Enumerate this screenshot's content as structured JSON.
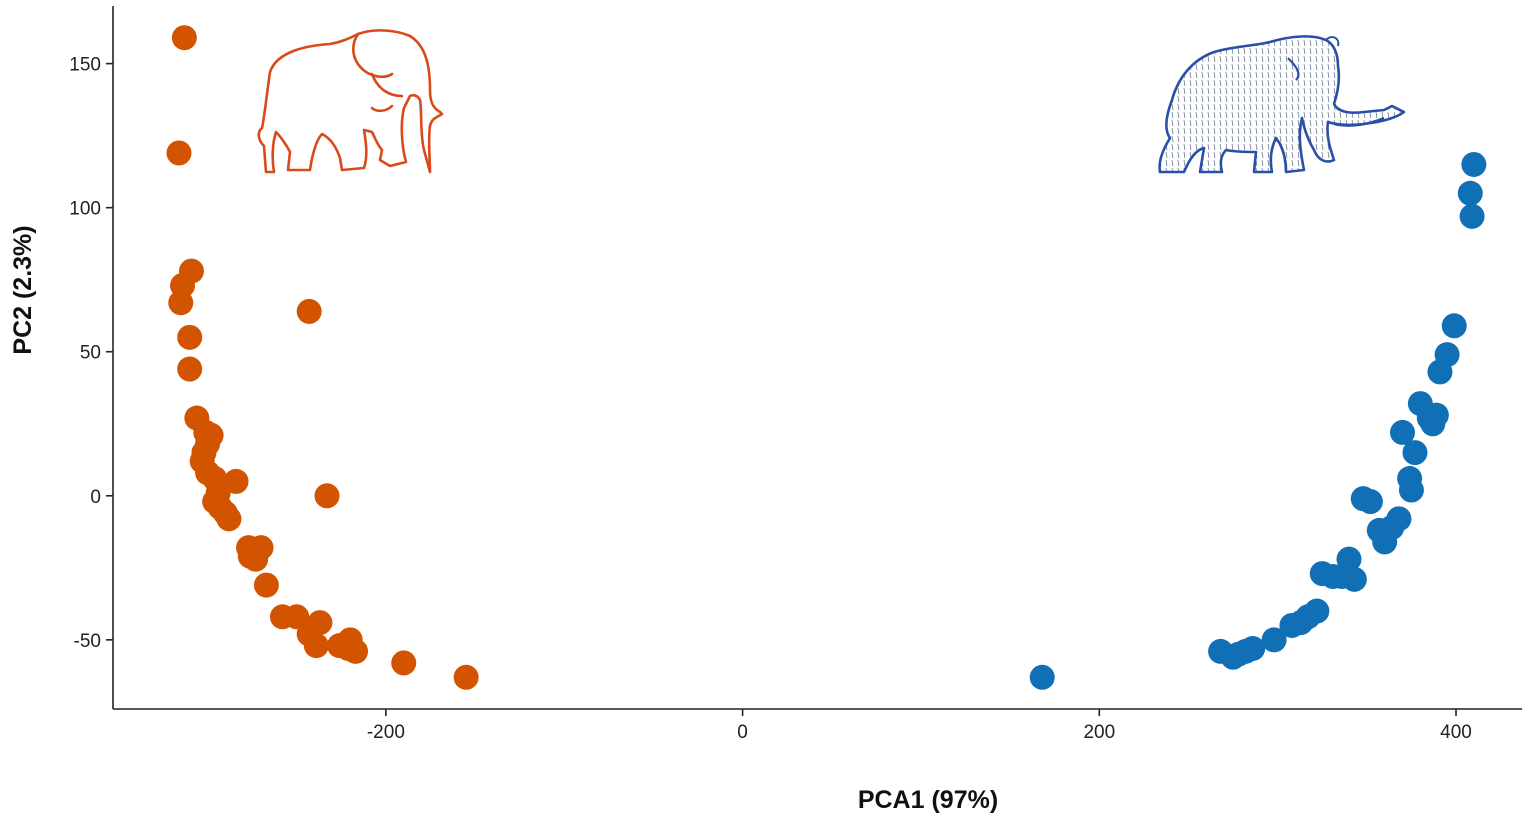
{
  "chart_data": {
    "type": "scatter",
    "title": "",
    "xlabel": "PCA1 (97%)",
    "ylabel": "PC2 (2.3%)",
    "xlim": [
      -353,
      437
    ],
    "ylim": [
      -74,
      170
    ],
    "xticks": [
      -200,
      0,
      200,
      400
    ],
    "yticks": [
      -50,
      0,
      50,
      100,
      150
    ],
    "grid": false,
    "legend": "none",
    "series": [
      {
        "color": "#D35400",
        "icon": "elephant-icon",
        "points": [
          [
            -313,
            159
          ],
          [
            -316,
            119
          ],
          [
            -309,
            78
          ],
          [
            -314,
            73
          ],
          [
            -315,
            67
          ],
          [
            -310,
            55
          ],
          [
            -310,
            44
          ],
          [
            -306,
            27
          ],
          [
            -301,
            22
          ],
          [
            -298,
            21
          ],
          [
            -300,
            18
          ],
          [
            -302,
            15
          ],
          [
            -303,
            12
          ],
          [
            -300,
            8
          ],
          [
            -296,
            6
          ],
          [
            -294,
            1
          ],
          [
            -296,
            -2
          ],
          [
            -293,
            -4
          ],
          [
            -290,
            -6
          ],
          [
            -288,
            -8
          ],
          [
            -284,
            5
          ],
          [
            -243,
            64
          ],
          [
            -233,
            0
          ],
          [
            -277,
            -18
          ],
          [
            -270,
            -18
          ],
          [
            -276,
            -21
          ],
          [
            -273,
            -22
          ],
          [
            -267,
            -31
          ],
          [
            -258,
            -42
          ],
          [
            -250,
            -42
          ],
          [
            -243,
            -48
          ],
          [
            -237,
            -44
          ],
          [
            -239,
            -52
          ],
          [
            -226,
            -52
          ],
          [
            -220,
            -50
          ],
          [
            -221,
            -53
          ],
          [
            -217,
            -54
          ],
          [
            -190,
            -58
          ],
          [
            -155,
            -63
          ]
        ]
      },
      {
        "color": "#1170B5",
        "icon": "mammoth-icon",
        "points": [
          [
            168,
            -63
          ],
          [
            268,
            -54
          ],
          [
            275,
            -56
          ],
          [
            278,
            -55
          ],
          [
            282,
            -54
          ],
          [
            286,
            -53
          ],
          [
            298,
            -50
          ],
          [
            308,
            -45
          ],
          [
            313,
            -44
          ],
          [
            317,
            -42
          ],
          [
            322,
            -40
          ],
          [
            325,
            -27
          ],
          [
            331,
            -28
          ],
          [
            336,
            -28
          ],
          [
            340,
            -22
          ],
          [
            343,
            -29
          ],
          [
            348,
            -1
          ],
          [
            352,
            -2
          ],
          [
            357,
            -12
          ],
          [
            360,
            -16
          ],
          [
            364,
            -11
          ],
          [
            368,
            -8
          ],
          [
            370,
            22
          ],
          [
            374,
            6
          ],
          [
            375,
            2
          ],
          [
            377,
            15
          ],
          [
            380,
            32
          ],
          [
            385,
            27
          ],
          [
            389,
            28
          ],
          [
            387,
            25
          ],
          [
            391,
            43
          ],
          [
            395,
            49
          ],
          [
            399,
            59
          ],
          [
            409,
            97
          ],
          [
            408,
            105
          ],
          [
            410,
            115
          ]
        ]
      }
    ]
  }
}
